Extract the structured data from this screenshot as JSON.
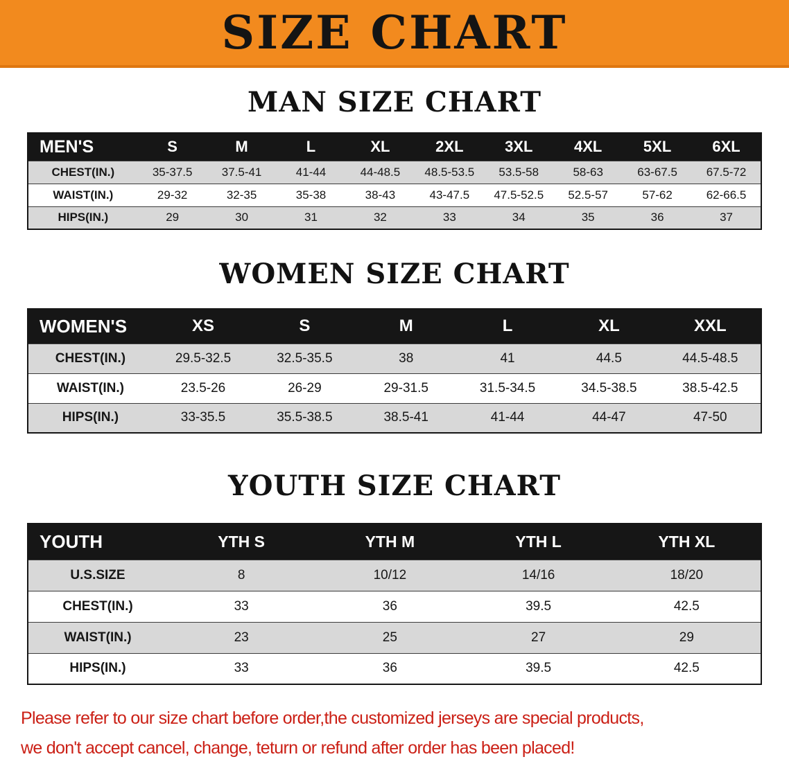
{
  "banner": {
    "title": "SIZE CHART"
  },
  "colors": {
    "banner_orange": "#f28a1e",
    "table_header_black": "#161616",
    "row_gray": "#d8d8d8",
    "disclaimer_red": "#cb2016"
  },
  "sections": [
    {
      "heading": "MAN SIZE CHART",
      "table": {
        "header": [
          "MEN'S",
          "S",
          "M",
          "L",
          "XL",
          "2XL",
          "3XL",
          "4XL",
          "5XL",
          "6XL"
        ],
        "rows": [
          {
            "label": "CHEST(IN.)",
            "values": [
              "35-37.5",
              "37.5-41",
              "41-44",
              "44-48.5",
              "48.5-53.5",
              "53.5-58",
              "58-63",
              "63-67.5",
              "67.5-72"
            ]
          },
          {
            "label": "WAIST(IN.)",
            "values": [
              "29-32",
              "32-35",
              "35-38",
              "38-43",
              "43-47.5",
              "47.5-52.5",
              "52.5-57",
              "57-62",
              "62-66.5"
            ]
          },
          {
            "label": "HIPS(IN.)",
            "values": [
              "29",
              "30",
              "31",
              "32",
              "33",
              "34",
              "35",
              "36",
              "37"
            ]
          }
        ]
      }
    },
    {
      "heading": "WOMEN SIZE CHART",
      "table": {
        "header": [
          "WOMEN'S",
          "XS",
          "S",
          "M",
          "L",
          "XL",
          "XXL"
        ],
        "rows": [
          {
            "label": "CHEST(IN.)",
            "values": [
              "29.5-32.5",
              "32.5-35.5",
              "38",
              "41",
              "44.5",
              "44.5-48.5"
            ]
          },
          {
            "label": "WAIST(IN.)",
            "values": [
              "23.5-26",
              "26-29",
              "29-31.5",
              "31.5-34.5",
              "34.5-38.5",
              "38.5-42.5"
            ]
          },
          {
            "label": "HIPS(IN.)",
            "values": [
              "33-35.5",
              "35.5-38.5",
              "38.5-41",
              "41-44",
              "44-47",
              "47-50"
            ]
          }
        ]
      }
    },
    {
      "heading": "YOUTH SIZE CHART",
      "table": {
        "header": [
          "YOUTH",
          "YTH S",
          "YTH M",
          "YTH L",
          "YTH XL"
        ],
        "rows": [
          {
            "label": "U.S.SIZE",
            "values": [
              "8",
              "10/12",
              "14/16",
              "18/20"
            ]
          },
          {
            "label": "CHEST(IN.)",
            "values": [
              "33",
              "36",
              "39.5",
              "42.5"
            ]
          },
          {
            "label": "WAIST(IN.)",
            "values": [
              "23",
              "25",
              "27",
              "29"
            ]
          },
          {
            "label": "HIPS(IN.)",
            "values": [
              "33",
              "36",
              "39.5",
              "42.5"
            ]
          }
        ]
      }
    }
  ],
  "disclaimer": {
    "lines": [
      "Please refer to our size chart before order,the customized jerseys are special products,",
      "we don't accept cancel, change, teturn or refund after order has been placed!"
    ]
  }
}
